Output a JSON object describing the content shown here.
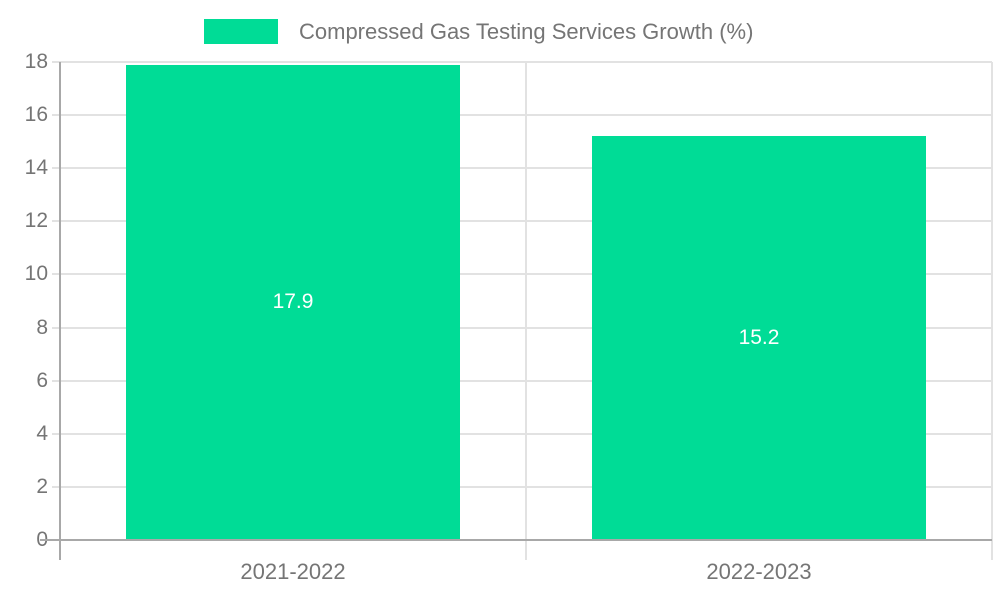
{
  "legend": {
    "label": "Compressed Gas Testing Services Growth (%)",
    "swatch_color": "#00dc96"
  },
  "chart_data": {
    "type": "bar",
    "title": "Compressed Gas Testing Services Growth (%)",
    "categories": [
      "2021-2022",
      "2022-2023"
    ],
    "series": [
      {
        "name": "Compressed Gas Testing Services Growth (%)",
        "color": "#00dc96",
        "values": [
          17.9,
          15.2
        ]
      }
    ],
    "value_labels": [
      "17.9",
      "15.2"
    ],
    "xlabel": "",
    "ylabel": "",
    "ylim": [
      0,
      18
    ],
    "yticks": [
      0,
      2,
      4,
      6,
      8,
      10,
      12,
      14,
      16,
      18
    ],
    "grid": true,
    "legend_position": "top-center",
    "colors": {
      "bar": "#00dc96",
      "axis": "#a8a8a8",
      "gridline": "#e2e2e2",
      "tick_label": "#757575",
      "value_label": "#ffffff",
      "background": "#ffffff"
    }
  }
}
